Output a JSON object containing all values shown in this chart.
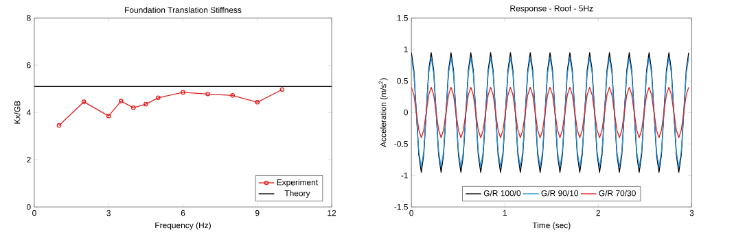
{
  "chart_data": [
    {
      "type": "line",
      "title": "Foundation Translation Stiffness",
      "xlabel": "Frequency (Hz)",
      "ylabel": "Kx/GB",
      "x": [
        1,
        2,
        3,
        3.5,
        4,
        4.5,
        5,
        6,
        7,
        8,
        9,
        10
      ],
      "series": [
        {
          "name": "Experiment",
          "color": "#e02020",
          "marker": "circle",
          "values": [
            3.45,
            4.45,
            3.85,
            4.48,
            4.2,
            4.35,
            4.62,
            4.85,
            4.78,
            4.72,
            4.43,
            4.97
          ]
        },
        {
          "name": "Theory",
          "color": "#000000",
          "marker": "none",
          "x": [
            0,
            12
          ],
          "values": [
            5.1,
            5.1
          ]
        }
      ],
      "xlim": [
        0,
        12
      ],
      "ylim": [
        0,
        8
      ],
      "xticks": [
        0,
        3,
        6,
        9,
        12
      ],
      "yticks": [
        0,
        2,
        4,
        6,
        8
      ],
      "legend": "bottom right"
    },
    {
      "type": "line",
      "title": "Response - Roof - 5Hz",
      "xlabel": "Time (sec)",
      "ylabel": "Acceleration (m/s$^{2}$)",
      "x": [
        0,
        0.0265,
        0.053,
        0.0795,
        0.106,
        0.1325,
        0.159,
        0.1855,
        0.212,
        0.2385,
        0.265,
        0.2915,
        0.318,
        0.3445,
        0.371,
        0.3975,
        0.424,
        0.4505,
        0.477,
        0.5035,
        0.53,
        0.5565,
        0.583,
        0.6095,
        0.636,
        0.6625,
        0.689,
        0.7155,
        0.742,
        0.7685,
        0.795,
        0.8215,
        0.848,
        0.8745,
        0.901,
        0.9275,
        0.954,
        0.9805,
        1.007,
        1.0335,
        1.06,
        1.0865,
        1.113,
        1.1395,
        1.166,
        1.1925,
        1.219,
        1.2455,
        1.272,
        1.2985,
        1.325,
        1.3515,
        1.378,
        1.4045,
        1.431,
        1.4575,
        1.484,
        1.5105,
        1.537,
        1.5635,
        1.59,
        1.6165,
        1.643,
        1.6695,
        1.696,
        1.7225,
        1.749,
        1.7755,
        1.802,
        1.8285,
        1.855,
        1.8815,
        1.908,
        1.9345,
        1.961,
        1.9875,
        2.014,
        2.0405,
        2.067,
        2.0935,
        2.12,
        2.1465,
        2.173,
        2.1995,
        2.226,
        2.2525,
        2.279,
        2.3055,
        2.332,
        2.3585,
        2.385,
        2.4115,
        2.438,
        2.4645,
        2.491,
        2.5175,
        2.544,
        2.5705,
        2.597,
        2.6235,
        2.65,
        2.6765,
        2.703,
        2.7295,
        2.756,
        2.7825,
        2.809,
        2.8355,
        2.862,
        2.8885,
        2.915,
        2.9415,
        2.968
      ],
      "series": [
        {
          "name": "G/R 100/0",
          "color": "#000000",
          "values": [
            0.95,
            0.67,
            0,
            -0.67,
            -0.95,
            -0.67,
            0,
            0.67,
            0.95,
            0.67,
            0,
            -0.67,
            -0.95,
            -0.67,
            0,
            0.67,
            0.95,
            0.67,
            0,
            -0.67,
            -0.95,
            -0.67,
            0,
            0.67,
            0.95,
            0.67,
            0,
            -0.67,
            -0.95,
            -0.67,
            0,
            0.67,
            0.95,
            0.67,
            0,
            -0.67,
            -0.95,
            -0.67,
            0,
            0.67,
            0.95,
            0.67,
            0,
            -0.67,
            -0.95,
            -0.67,
            0,
            0.67,
            0.95,
            0.67,
            0,
            -0.67,
            -0.95,
            -0.67,
            0,
            0.67,
            0.95,
            0.67,
            0,
            -0.67,
            -0.95,
            -0.67,
            0,
            0.67,
            0.95,
            0.67,
            0,
            -0.67,
            -0.95,
            -0.67,
            0,
            0.67,
            0.95,
            0.67,
            0,
            -0.67,
            -0.95,
            -0.67,
            0,
            0.67,
            0.95,
            0.67,
            0,
            -0.67,
            -0.95,
            -0.67,
            0,
            0.67,
            0.95,
            0.67,
            0,
            -0.67,
            -0.95,
            -0.67,
            0,
            0.67,
            0.95,
            0.67,
            0,
            -0.67,
            -0.95,
            -0.67,
            0,
            0.67,
            0.95,
            0.67,
            0,
            -0.67,
            -0.95,
            -0.67,
            0,
            0.67,
            0.95
          ]
        },
        {
          "name": "G/R 90/10",
          "color": "#1e90e0",
          "values": [
            0.87,
            0.62,
            0,
            -0.62,
            -0.87,
            -0.62,
            0,
            0.62,
            0.87,
            0.62,
            0,
            -0.62,
            -0.87,
            -0.62,
            0,
            0.62,
            0.87,
            0.62,
            0,
            -0.62,
            -0.87,
            -0.62,
            0,
            0.62,
            0.87,
            0.62,
            0,
            -0.62,
            -0.87,
            -0.62,
            0,
            0.62,
            0.87,
            0.62,
            0,
            -0.62,
            -0.87,
            -0.62,
            0,
            0.62,
            0.87,
            0.62,
            0,
            -0.62,
            -0.87,
            -0.62,
            0,
            0.62,
            0.87,
            0.62,
            0,
            -0.62,
            -0.87,
            -0.62,
            0,
            0.62,
            0.87,
            0.62,
            0,
            -0.62,
            -0.87,
            -0.62,
            0,
            0.62,
            0.87,
            0.62,
            0,
            -0.62,
            -0.87,
            -0.62,
            0,
            0.62,
            0.87,
            0.62,
            0,
            -0.62,
            -0.87,
            -0.62,
            0,
            0.62,
            0.87,
            0.62,
            0,
            -0.62,
            -0.87,
            -0.62,
            0,
            0.62,
            0.87,
            0.62,
            0,
            -0.62,
            -0.87,
            -0.62,
            0,
            0.62,
            0.87,
            0.62,
            0,
            -0.62,
            -0.87,
            -0.62,
            0,
            0.62,
            0.87,
            0.62,
            0,
            -0.62,
            -0.87,
            -0.62,
            0,
            0.62,
            0.87
          ]
        },
        {
          "name": "G/R 70/30",
          "color": "#e02020",
          "values": [
            0.4,
            0.28,
            0,
            -0.28,
            -0.4,
            -0.28,
            0,
            0.28,
            0.4,
            0.28,
            0,
            -0.28,
            -0.4,
            -0.28,
            0,
            0.28,
            0.4,
            0.28,
            0,
            -0.28,
            -0.4,
            -0.28,
            0,
            0.28,
            0.4,
            0.28,
            0,
            -0.28,
            -0.4,
            -0.28,
            0,
            0.28,
            0.4,
            0.28,
            0,
            -0.28,
            -0.4,
            -0.28,
            0,
            0.28,
            0.4,
            0.28,
            0,
            -0.28,
            -0.4,
            -0.28,
            0,
            0.28,
            0.4,
            0.28,
            0,
            -0.28,
            -0.4,
            -0.28,
            0,
            0.28,
            0.4,
            0.28,
            0,
            -0.28,
            -0.4,
            -0.28,
            0,
            0.28,
            0.4,
            0.28,
            0,
            -0.28,
            -0.4,
            -0.28,
            0,
            0.28,
            0.4,
            0.28,
            0,
            -0.28,
            -0.4,
            -0.28,
            0,
            0.28,
            0.4,
            0.28,
            0,
            -0.28,
            -0.4,
            -0.28,
            0,
            0.28,
            0.4,
            0.28,
            0,
            -0.28,
            -0.4,
            -0.28,
            0,
            0.28,
            0.4,
            0.28,
            0,
            -0.28,
            -0.4,
            -0.28,
            0,
            0.28,
            0.4,
            0.28,
            0,
            -0.28,
            -0.4,
            -0.28,
            0,
            0.28,
            0.4
          ]
        }
      ],
      "xlim": [
        0,
        3
      ],
      "ylim": [
        -1.5,
        1.5
      ],
      "xticks": [
        0,
        1,
        2,
        3
      ],
      "yticks": [
        -1.5,
        -1,
        -0.5,
        0,
        0.5,
        1,
        1.5
      ],
      "legend": "bottom"
    }
  ]
}
